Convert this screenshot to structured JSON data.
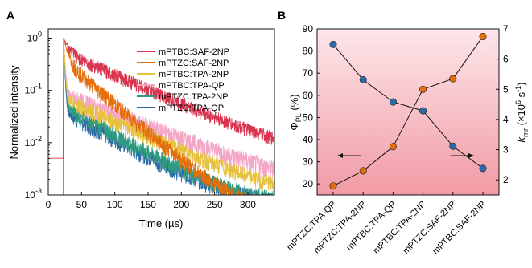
{
  "chart_data": [
    {
      "panel_label": "A",
      "type": "line",
      "xlabel": "Time (µs)",
      "ylabel": "Normalized intensity",
      "xlim": [
        0,
        340
      ],
      "ylim": [
        0.001,
        1.5
      ],
      "yscale": "log",
      "x_ticks": [
        0,
        50,
        100,
        150,
        200,
        250,
        300
      ],
      "y_ticks": [
        {
          "value": 1,
          "label": "10",
          "exp": "0"
        },
        {
          "value": 0.1,
          "label": "10",
          "exp": "-1"
        },
        {
          "value": 0.01,
          "label": "10",
          "exp": "-2"
        },
        {
          "value": 0.001,
          "label": "10",
          "exp": "-3"
        }
      ],
      "legend_position": "top-right",
      "series": [
        {
          "name": "mPTBC:SAF-2NP",
          "color": "#d9344f",
          "t0": 23,
          "a1": 0.45,
          "tau1": 7,
          "a2": 0.55,
          "tau2": 75,
          "floor": 0.0042,
          "noise": 0.3
        },
        {
          "name": "mPTZC:SAF-2NP",
          "color": "#e36f0c",
          "t0": 23,
          "a1": 0.62,
          "tau1": 6,
          "a2": 0.38,
          "tau2": 40,
          "floor": 0.0004,
          "noise": 0.35
        },
        {
          "name": "mPTBC:TPA-2NP",
          "color": "#e6c23a",
          "t0": 23,
          "a1": 0.93,
          "tau1": 1.5,
          "a2": 0.07,
          "tau2": 75,
          "floor": 0.0006,
          "noise": 0.35
        },
        {
          "name": "mPTBC:TPA-QP",
          "color": "#f3a6c6",
          "t0": 23,
          "a1": 0.92,
          "tau1": 1.8,
          "a2": 0.08,
          "tau2": 90,
          "floor": 0.0008,
          "noise": 0.45
        },
        {
          "name": "mPTZC:TPA-2NP",
          "color": "#2e9a7e",
          "t0": 23,
          "a1": 0.95,
          "tau1": 1.5,
          "a2": 0.05,
          "tau2": 60,
          "floor": 0.0006,
          "noise": 0.35
        },
        {
          "name": "mPTZC:TPA-QP",
          "color": "#2b6aa6",
          "t0": 23,
          "a1": 0.96,
          "tau1": 1.3,
          "a2": 0.04,
          "tau2": 60,
          "floor": 0.0006,
          "noise": 0.35
        }
      ]
    },
    {
      "panel_label": "B",
      "type": "line",
      "categories": [
        "mPTZC:TPA-QP",
        "mPTZC:TPA-2NP",
        "mPTBC:TPA-QP",
        "mPTBC:TPA-2NP",
        "mPTZC:SAF-2NP",
        "mPTBC:SAF-2NP"
      ],
      "ylabel_left": {
        "main": "Φ",
        "sub": "PL",
        "unit": " (%)"
      },
      "ylabel_right": {
        "main": "k",
        "sub": "rnr",
        "pre": " (×10",
        "exp": "6",
        "post": " s",
        "exp2": "-1",
        "close": ")"
      },
      "ylim_left": [
        15,
        90
      ],
      "ylim_right": [
        1.5,
        7
      ],
      "left_ticks": [
        20,
        30,
        40,
        50,
        60,
        70,
        80,
        90
      ],
      "right_ticks": [
        2,
        3,
        4,
        5,
        6,
        7
      ],
      "background_gradient": [
        "#fde7ea",
        "#f19aa4"
      ],
      "series": [
        {
          "axis": "left",
          "color": "#2b6aa6",
          "values": [
            83,
            67,
            57,
            53,
            37,
            27
          ]
        },
        {
          "axis": "right",
          "color": "#e36f0c",
          "values": [
            1.8,
            2.3,
            3.1,
            5.0,
            5.35,
            6.75
          ]
        }
      ]
    }
  ]
}
